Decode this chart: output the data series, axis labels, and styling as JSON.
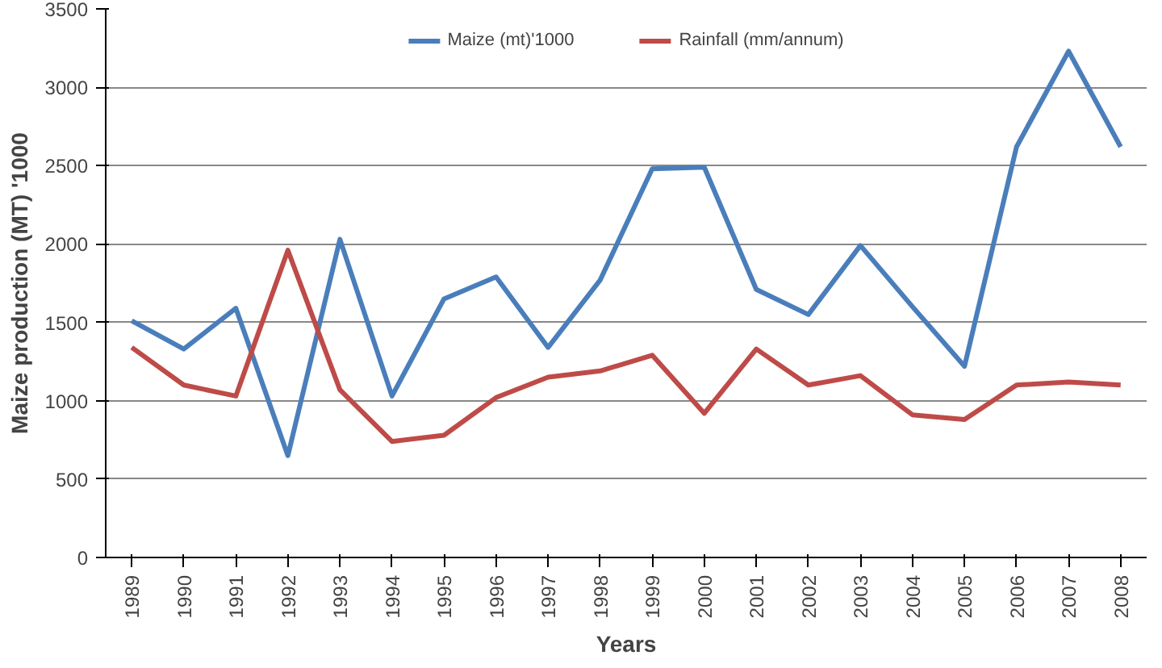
{
  "chart_data": {
    "type": "line",
    "xlabel": "Years",
    "ylabel": "Maize production (MT) '1000",
    "categories": [
      "1989",
      "1990",
      "1991",
      "1992",
      "1993",
      "1994",
      "1995",
      "1996",
      "1997",
      "1998",
      "1999",
      "2000",
      "2001",
      "2002",
      "2003",
      "2004",
      "2005",
      "2006",
      "2007",
      "2008"
    ],
    "series": [
      {
        "name": "Maize (mt)'1000",
        "color": "#4a7ebb",
        "values": [
          1510,
          1330,
          1590,
          650,
          2030,
          1030,
          1650,
          1790,
          1340,
          1770,
          2480,
          2490,
          1710,
          1550,
          1990,
          1600,
          1220,
          2620,
          3230,
          2620
        ]
      },
      {
        "name": "Rainfall (mm/annum)",
        "color": "#be4b48",
        "values": [
          1340,
          1100,
          1030,
          1960,
          1070,
          740,
          780,
          1020,
          1150,
          1190,
          1290,
          920,
          1330,
          1100,
          1160,
          910,
          880,
          1100,
          1120,
          1100
        ]
      }
    ],
    "ylim": [
      0,
      3500
    ],
    "yticks": [
      0,
      500,
      1000,
      1500,
      2000,
      2500,
      3000,
      3500
    ],
    "grid": "y",
    "legend": "top",
    "marker": "none",
    "line_style": "solid"
  }
}
